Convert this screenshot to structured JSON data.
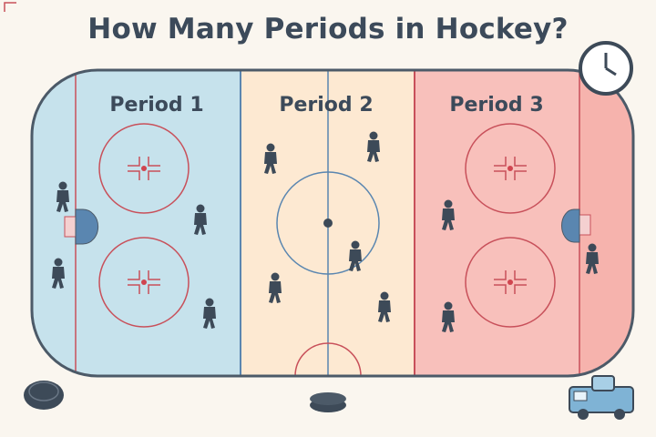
{
  "title": "How Many Periods in Hockey?",
  "periods": [
    {
      "label": "Period 1",
      "color": "#c6e2ec"
    },
    {
      "label": "Period 2",
      "color": "#fde9d2"
    },
    {
      "label": "Period 3",
      "color": "#f8c0bb"
    }
  ],
  "colors": {
    "outline": "#4c5a68",
    "red_line": "#c8505a",
    "blue_line": "#5a86b0",
    "player": "#3d4a58",
    "background": "#faf6ef"
  },
  "icons": [
    "clock-icon",
    "puck-icon",
    "zamboni-icon",
    "goal-net-icon",
    "player-icon"
  ]
}
